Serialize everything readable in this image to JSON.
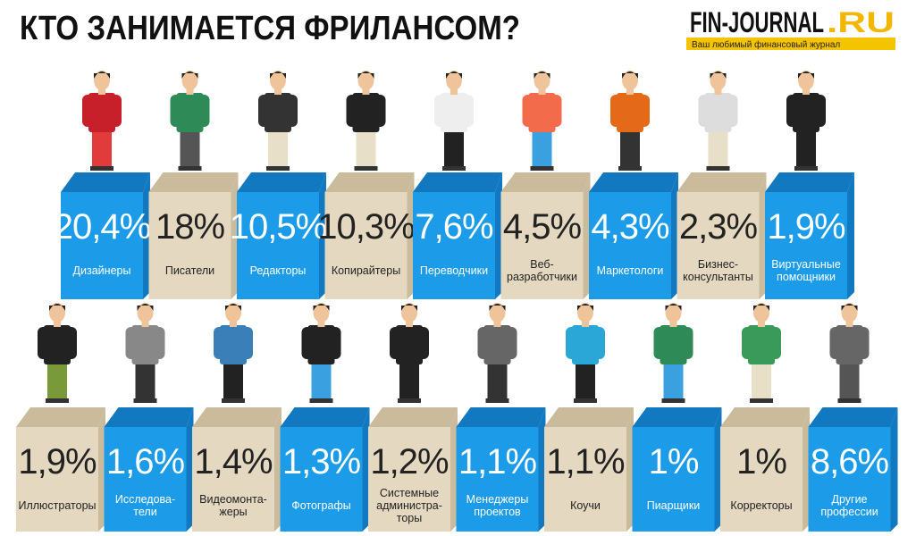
{
  "header": {
    "title": "КТО ЗАНИМАЕТСЯ ФРИЛАНСОМ?",
    "brand_main": "FIN-JOURNAL",
    "brand_tld": ".RU",
    "tagline": "Ваш любимый финансовый журнал"
  },
  "rows": [
    [
      {
        "value": "20,4%",
        "label": [
          "Дизайнеры"
        ]
      },
      {
        "value": "18%",
        "label": [
          "Писатели"
        ]
      },
      {
        "value": "10,5%",
        "label": [
          "Редакторы"
        ]
      },
      {
        "value": "10,3%",
        "label": [
          "Копирайтеры"
        ]
      },
      {
        "value": "7,6%",
        "label": [
          "Переводчики"
        ]
      },
      {
        "value": "4,5%",
        "label": [
          "Веб-",
          "разработчики"
        ]
      },
      {
        "value": "4,3%",
        "label": [
          "Маркетологи"
        ]
      },
      {
        "value": "2,3%",
        "label": [
          "Бизнес-",
          "консультанты"
        ]
      },
      {
        "value": "1,9%",
        "label": [
          "Виртуальные",
          "помощники"
        ]
      }
    ],
    [
      {
        "value": "1,9%",
        "label": [
          "Иллюстраторы"
        ]
      },
      {
        "value": "1,6%",
        "label": [
          "Исследова-",
          "тели"
        ]
      },
      {
        "value": "1,4%",
        "label": [
          "Видеомонта-",
          "жеры"
        ]
      },
      {
        "value": "1,3%",
        "label": [
          "Фотографы"
        ]
      },
      {
        "value": "1,2%",
        "label": [
          "Системные",
          "администра-",
          "торы"
        ]
      },
      {
        "value": "1,1%",
        "label": [
          "Менеджеры",
          "проектов"
        ]
      },
      {
        "value": "1,1%",
        "label": [
          "Коучи"
        ]
      },
      {
        "value": "1%",
        "label": [
          "Пиарщики"
        ]
      },
      {
        "value": "1%",
        "label": [
          "Корректоры"
        ]
      },
      {
        "value": "8,6%",
        "label": [
          "Другие",
          "профессии"
        ]
      }
    ]
  ]
}
